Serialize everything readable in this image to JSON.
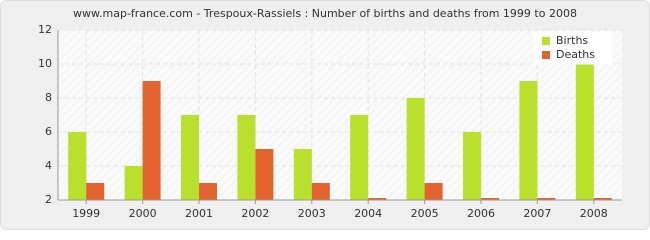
{
  "chart_data": {
    "type": "bar",
    "title": "www.map-france.com - Trespoux-Rassiels : Number of births and deaths from 1999 to 2008",
    "categories": [
      "1999",
      "2000",
      "2001",
      "2002",
      "2003",
      "2004",
      "2005",
      "2006",
      "2007",
      "2008"
    ],
    "series": [
      {
        "name": "Births",
        "color": "#b8e02c",
        "values": [
          6,
          4,
          7,
          7,
          5,
          7,
          8,
          6,
          9,
          10
        ]
      },
      {
        "name": "Deaths",
        "color": "#e3632e",
        "values": [
          3,
          9,
          3,
          5,
          3,
          2,
          3,
          2,
          2,
          2
        ]
      }
    ],
    "ylim": [
      2,
      12
    ],
    "yticks": [
      2,
      4,
      6,
      8,
      10,
      12
    ],
    "grid": true,
    "legend": "top-right"
  }
}
